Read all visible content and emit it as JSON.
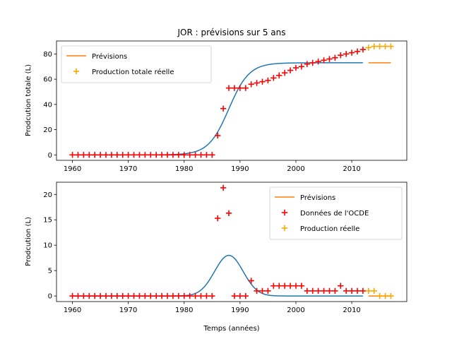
{
  "chart_data": [
    {
      "type": "line",
      "title": "JOR : prévisions sur 5 ans",
      "xlabel": "",
      "ylabel": "Prodcution totale (L)",
      "xlim": [
        1957.15,
        2019.85
      ],
      "ylim": [
        -4.3,
        90.3
      ],
      "xticks": [
        1960,
        1970,
        1980,
        1990,
        2000,
        2010
      ],
      "yticks": [
        0,
        20,
        40,
        60,
        80
      ],
      "legend": [
        "Prévisions",
        "Production totale réelle"
      ],
      "legend_position": "top-left",
      "colors": {
        "model": "#1f77b4",
        "forecast": "#ff7f0e",
        "oecd": "#ff0000",
        "real": "#ffa500"
      },
      "model_curve": {
        "kind": "logistic",
        "L": 73,
        "x0": 1988,
        "k": 0.55,
        "x_start": 1960,
        "x_end": 2012
      },
      "forecast": {
        "x": [
          2013,
          2017
        ],
        "y": [
          73,
          73
        ]
      },
      "oecd_points": {
        "x": [
          1960,
          1961,
          1962,
          1963,
          1964,
          1965,
          1966,
          1967,
          1968,
          1969,
          1970,
          1971,
          1972,
          1973,
          1974,
          1975,
          1976,
          1977,
          1978,
          1979,
          1980,
          1981,
          1982,
          1983,
          1984,
          1985,
          1986,
          1987,
          1988,
          1989,
          1990,
          1991,
          1992,
          1993,
          1994,
          1995,
          1996,
          1997,
          1998,
          1999,
          2000,
          2001,
          2002,
          2003,
          2004,
          2005,
          2006,
          2007,
          2008,
          2009,
          2010,
          2011,
          2012
        ],
        "y": [
          0,
          0,
          0,
          0,
          0,
          0,
          0,
          0,
          0,
          0,
          0,
          0,
          0,
          0,
          0,
          0,
          0,
          0,
          0,
          0,
          0,
          0,
          0,
          0,
          0,
          0,
          15.3,
          36.7,
          53,
          53,
          53,
          53,
          56,
          57,
          58,
          59,
          61,
          63,
          65,
          67,
          69,
          70,
          72,
          73,
          74,
          75,
          76,
          77,
          79,
          80,
          81,
          82,
          83.5
        ]
      },
      "real_points": {
        "x": [
          2013,
          2014,
          2015,
          2016,
          2017
        ],
        "y": [
          85,
          86,
          86,
          86,
          86
        ]
      }
    },
    {
      "type": "line",
      "title": "",
      "xlabel": "Temps (années)",
      "ylabel": "Prodcution (L)",
      "xlim": [
        1957.15,
        2019.85
      ],
      "ylim": [
        -1.1,
        22.4
      ],
      "xticks": [
        1960,
        1970,
        1980,
        1990,
        2000,
        2010
      ],
      "yticks": [
        0,
        5,
        10,
        15,
        20
      ],
      "legend": [
        "Prévisions",
        "Données de l'OCDE",
        "Production réelle"
      ],
      "legend_position": "top-right",
      "colors": {
        "model": "#1f77b4",
        "forecast": "#ff7f0e",
        "oecd": "#ff0000",
        "real": "#ffa500"
      },
      "model_curve": {
        "kind": "gaussian",
        "A": 8.0,
        "mu": 1988,
        "sigma": 2.55,
        "x_start": 1960,
        "x_end": 2012
      },
      "forecast": {
        "x": [
          2013,
          2017
        ],
        "y": [
          0,
          0
        ]
      },
      "oecd_points": {
        "x": [
          1960,
          1961,
          1962,
          1963,
          1964,
          1965,
          1966,
          1967,
          1968,
          1969,
          1970,
          1971,
          1972,
          1973,
          1974,
          1975,
          1976,
          1977,
          1978,
          1979,
          1980,
          1981,
          1982,
          1983,
          1984,
          1985,
          1986,
          1987,
          1988,
          1989,
          1990,
          1991,
          1992,
          1993,
          1994,
          1995,
          1996,
          1997,
          1998,
          1999,
          2000,
          2001,
          2002,
          2003,
          2004,
          2005,
          2006,
          2007,
          2008,
          2009,
          2010,
          2011,
          2012
        ],
        "y": [
          0,
          0,
          0,
          0,
          0,
          0,
          0,
          0,
          0,
          0,
          0,
          0,
          0,
          0,
          0,
          0,
          0,
          0,
          0,
          0,
          0,
          0,
          0,
          0,
          0,
          0,
          15.3,
          21.3,
          16.3,
          0,
          0,
          0,
          3,
          1,
          1,
          1,
          2,
          2,
          2,
          2,
          2,
          2,
          1,
          1,
          1,
          1,
          1,
          1,
          2,
          1,
          1,
          1,
          1
        ]
      },
      "real_points": {
        "x": [
          2013,
          2014,
          2015,
          2016,
          2017
        ],
        "y": [
          1,
          1,
          0,
          0,
          0
        ]
      }
    }
  ]
}
